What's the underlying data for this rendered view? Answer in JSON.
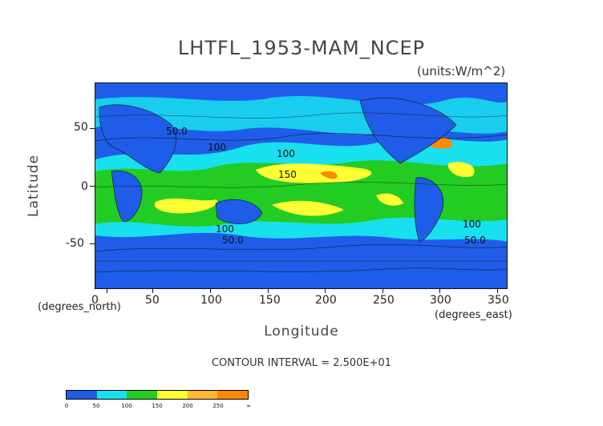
{
  "title": "LHTFL_1953-MAM_NCEP",
  "units": "(units:W/m^2)",
  "xlabel": "Longitude",
  "ylabel": "Latitude",
  "xunits": "(degrees_east)",
  "yunits": "(degrees_north)",
  "contour_interval": "CONTOUR INTERVAL = 2.500E+01",
  "x_ticks": [
    "0",
    "50",
    "100",
    "150",
    "200",
    "250",
    "300",
    "350"
  ],
  "y_ticks": [
    "50",
    "0",
    "-50"
  ],
  "inline_labels": [
    "50.0",
    "100",
    "150",
    "100",
    "50.0",
    "100",
    "50.0",
    "100"
  ],
  "colorbar": {
    "labels": [
      "0",
      "50",
      "100",
      "150",
      "200",
      "250",
      "∞"
    ],
    "colors": [
      "#1f5de8",
      "#19e0ef",
      "#22cc22",
      "#ffff33",
      "#ffb833",
      "#ff8800",
      "#ff1a1a"
    ]
  },
  "chart_data": {
    "type": "heatmap",
    "title": "LHTFL_1953-MAM_NCEP",
    "xlabel": "Longitude",
    "ylabel": "Latitude",
    "xlim": [
      0,
      360
    ],
    "ylim": [
      -90,
      90
    ],
    "x_ticks": [
      0,
      50,
      100,
      150,
      200,
      250,
      300,
      350
    ],
    "y_ticks": [
      -50,
      0,
      50
    ],
    "contour_interval": 25,
    "levels": [
      0,
      50,
      100,
      150,
      200,
      250
    ],
    "variable_units": "W/m^2",
    "colors": [
      "#1f5de8",
      "#19e0ef",
      "#22cc22",
      "#ffff33",
      "#ffb833",
      "#ff8800",
      "#ff1a1a"
    ]
  }
}
